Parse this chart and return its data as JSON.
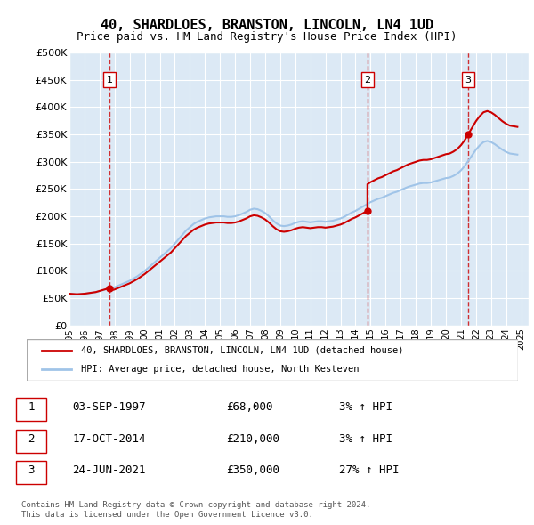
{
  "title": "40, SHARDLOES, BRANSTON, LINCOLN, LN4 1UD",
  "subtitle": "Price paid vs. HM Land Registry's House Price Index (HPI)",
  "background_color": "#dce9f5",
  "plot_bg_color": "#dce9f5",
  "hpi_color": "#a0c4e8",
  "price_color": "#cc0000",
  "dashed_line_color": "#cc0000",
  "ylim": [
    0,
    500000
  ],
  "yticks": [
    0,
    50000,
    100000,
    150000,
    200000,
    250000,
    300000,
    350000,
    400000,
    450000,
    500000
  ],
  "ytick_labels": [
    "£0",
    "£50K",
    "£100K",
    "£150K",
    "£200K",
    "£250K",
    "£300K",
    "£350K",
    "£400K",
    "£450K",
    "£500K"
  ],
  "xlabel_years": [
    1995,
    1996,
    1997,
    1998,
    1999,
    2000,
    2001,
    2002,
    2003,
    2004,
    2005,
    2006,
    2007,
    2008,
    2009,
    2010,
    2011,
    2012,
    2013,
    2014,
    2015,
    2016,
    2017,
    2018,
    2019,
    2020,
    2021,
    2022,
    2023,
    2024,
    2025
  ],
  "sales": [
    {
      "date_num": 1997.67,
      "price": 68000,
      "label": "1"
    },
    {
      "date_num": 2014.79,
      "price": 210000,
      "label": "2"
    },
    {
      "date_num": 2021.48,
      "price": 350000,
      "label": "3"
    }
  ],
  "sale_details": [
    {
      "label": "1",
      "date": "03-SEP-1997",
      "price": "£68,000",
      "hpi_change": "3% ↑ HPI"
    },
    {
      "label": "2",
      "date": "17-OCT-2014",
      "price": "£210,000",
      "hpi_change": "3% ↑ HPI"
    },
    {
      "label": "3",
      "date": "24-JUN-2021",
      "price": "£350,000",
      "hpi_change": "27% ↑ HPI"
    }
  ],
  "legend_entries": [
    {
      "label": "40, SHARDLOES, BRANSTON, LINCOLN, LN4 1UD (detached house)",
      "color": "#cc0000",
      "lw": 2
    },
    {
      "label": "HPI: Average price, detached house, North Kesteven",
      "color": "#a0c4e8",
      "lw": 2
    }
  ],
  "footer": "Contains HM Land Registry data © Crown copyright and database right 2024.\nThis data is licensed under the Open Government Licence v3.0.",
  "hpi_years": [
    1995.0,
    1995.25,
    1995.5,
    1995.75,
    1996.0,
    1996.25,
    1996.5,
    1996.75,
    1997.0,
    1997.25,
    1997.5,
    1997.75,
    1998.0,
    1998.25,
    1998.5,
    1998.75,
    1999.0,
    1999.25,
    1999.5,
    1999.75,
    2000.0,
    2000.25,
    2000.5,
    2000.75,
    2001.0,
    2001.25,
    2001.5,
    2001.75,
    2002.0,
    2002.25,
    2002.5,
    2002.75,
    2003.0,
    2003.25,
    2003.5,
    2003.75,
    2004.0,
    2004.25,
    2004.5,
    2004.75,
    2005.0,
    2005.25,
    2005.5,
    2005.75,
    2006.0,
    2006.25,
    2006.5,
    2006.75,
    2007.0,
    2007.25,
    2007.5,
    2007.75,
    2008.0,
    2008.25,
    2008.5,
    2008.75,
    2009.0,
    2009.25,
    2009.5,
    2009.75,
    2010.0,
    2010.25,
    2010.5,
    2010.75,
    2011.0,
    2011.25,
    2011.5,
    2011.75,
    2012.0,
    2012.25,
    2012.5,
    2012.75,
    2013.0,
    2013.25,
    2013.5,
    2013.75,
    2014.0,
    2014.25,
    2014.5,
    2014.75,
    2015.0,
    2015.25,
    2015.5,
    2015.75,
    2016.0,
    2016.25,
    2016.5,
    2016.75,
    2017.0,
    2017.25,
    2017.5,
    2017.75,
    2018.0,
    2018.25,
    2018.5,
    2018.75,
    2019.0,
    2019.25,
    2019.5,
    2019.75,
    2020.0,
    2020.25,
    2020.5,
    2020.75,
    2021.0,
    2021.25,
    2021.5,
    2021.75,
    2022.0,
    2022.25,
    2022.5,
    2022.75,
    2023.0,
    2023.25,
    2023.5,
    2023.75,
    2024.0,
    2024.25,
    2024.5,
    2024.75
  ],
  "hpi_values": [
    58000,
    57500,
    57000,
    57500,
    58000,
    59000,
    60000,
    61000,
    63000,
    65000,
    67000,
    68000,
    70000,
    73000,
    76000,
    79000,
    82000,
    86000,
    90000,
    95000,
    100000,
    106000,
    112000,
    118000,
    124000,
    130000,
    136000,
    142000,
    150000,
    158000,
    166000,
    174000,
    180000,
    186000,
    190000,
    193000,
    196000,
    198000,
    199000,
    200000,
    200000,
    200000,
    199000,
    199000,
    200000,
    202000,
    205000,
    208000,
    212000,
    214000,
    213000,
    210000,
    206000,
    200000,
    193000,
    187000,
    183000,
    182000,
    183000,
    185000,
    188000,
    190000,
    191000,
    190000,
    189000,
    190000,
    191000,
    191000,
    190000,
    191000,
    192000,
    194000,
    196000,
    199000,
    203000,
    207000,
    210000,
    214000,
    218000,
    222000,
    226000,
    229000,
    232000,
    234000,
    237000,
    240000,
    243000,
    245000,
    248000,
    251000,
    254000,
    256000,
    258000,
    260000,
    261000,
    261000,
    262000,
    264000,
    266000,
    268000,
    270000,
    271000,
    274000,
    278000,
    284000,
    292000,
    302000,
    312000,
    322000,
    330000,
    336000,
    338000,
    336000,
    332000,
    327000,
    322000,
    318000,
    315000,
    314000,
    313000
  ]
}
